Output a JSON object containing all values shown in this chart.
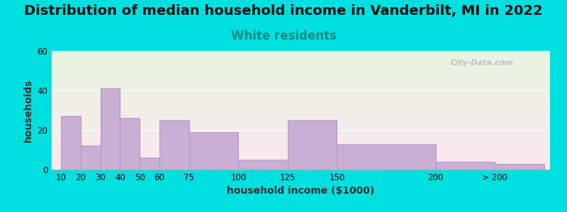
{
  "title": "Distribution of median household income in Vanderbilt, MI in 2022",
  "subtitle": "White residents",
  "xlabel": "household income ($1000)",
  "ylabel": "households",
  "bar_labels": [
    "10",
    "20",
    "30",
    "40",
    "50",
    "60",
    "75",
    "100",
    "125",
    "150",
    "200",
    "> 200"
  ],
  "bar_values": [
    27,
    12,
    41,
    26,
    6,
    25,
    19,
    5,
    25,
    13,
    4,
    3
  ],
  "bar_positions": [
    10,
    20,
    30,
    40,
    50,
    60,
    75,
    100,
    125,
    150,
    200,
    230
  ],
  "bar_widths": [
    10,
    10,
    10,
    10,
    10,
    15,
    25,
    25,
    25,
    50,
    30,
    25
  ],
  "tick_positions": [
    10,
    20,
    30,
    40,
    50,
    60,
    75,
    100,
    125,
    150,
    200,
    230
  ],
  "bar_color": "#c9afd4",
  "bar_edge_color": "#b898c8",
  "ylim": [
    0,
    60
  ],
  "yticks": [
    0,
    20,
    40,
    60
  ],
  "xlim": [
    5,
    258
  ],
  "outer_bg": "#00e0e0",
  "title_fontsize": 14,
  "subtitle_fontsize": 12,
  "subtitle_color": "#008888",
  "watermark": "City-Data.com"
}
